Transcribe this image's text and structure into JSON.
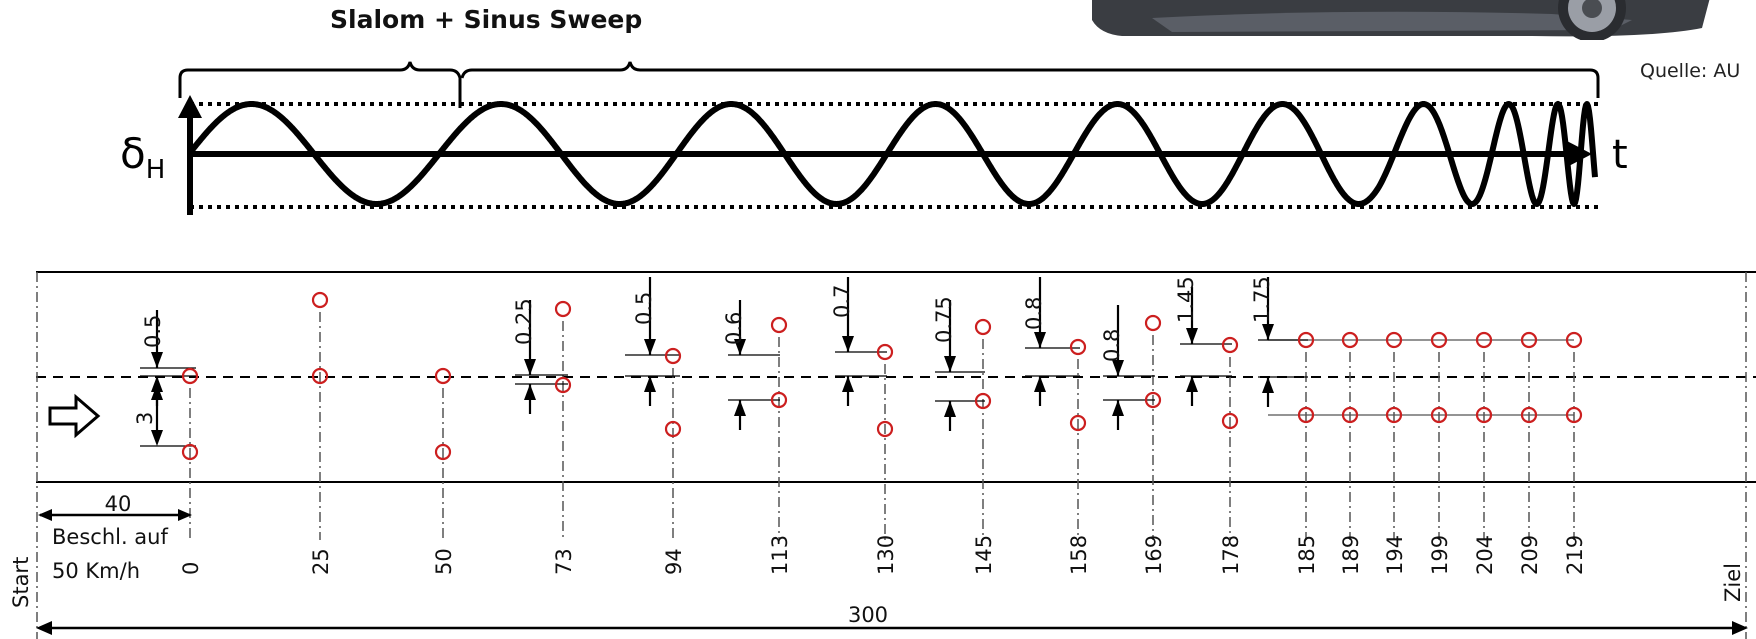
{
  "title": "Slalom + Sinus Sweep",
  "source_text": "Quelle: AU",
  "signal": {
    "y_symbol": "δ",
    "y_subscript": "H",
    "x_symbol": "t"
  },
  "track": {
    "length_label": "300",
    "accel_distance_label": "40",
    "accel_text_line1": "Beschl. auf",
    "accel_text_line2": "50 Km/h",
    "start_label": "Start",
    "finish_label": "Ziel",
    "positions": [
      "0",
      "25",
      "50",
      "73",
      "94",
      "113",
      "130",
      "145",
      "158",
      "169",
      "178",
      "185",
      "189",
      "194",
      "199",
      "204",
      "209",
      "219"
    ],
    "offsets": [
      "0.5",
      "3",
      "0.25",
      "0.5",
      "0.6",
      "0.7",
      "0.75",
      "0.8",
      "0.8",
      "1.45",
      "1.75"
    ]
  },
  "colors": {
    "cone": "#cc1f1f",
    "line": "#000000",
    "dash": "#777777"
  }
}
